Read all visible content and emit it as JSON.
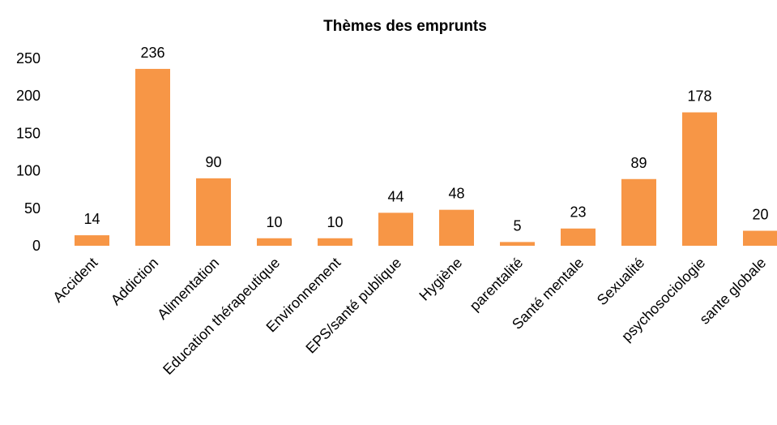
{
  "chart_data": {
    "type": "bar",
    "title": "Thèmes des emprunts",
    "categories": [
      "Accident",
      "Addiction",
      "Alimentation",
      "Education thérapeutique",
      "Environnement",
      "EPS/santé publique",
      "Hygiène",
      "parentalité",
      "Santé mentale",
      "Sexualité",
      "psychosociologie",
      "sante globale"
    ],
    "values": [
      14,
      236,
      90,
      10,
      10,
      44,
      48,
      5,
      23,
      89,
      178,
      20
    ],
    "color": "#f79646",
    "ylim": [
      0,
      250
    ],
    "yticks": [
      0,
      50,
      100,
      150,
      200,
      250
    ],
    "grid": false
  }
}
